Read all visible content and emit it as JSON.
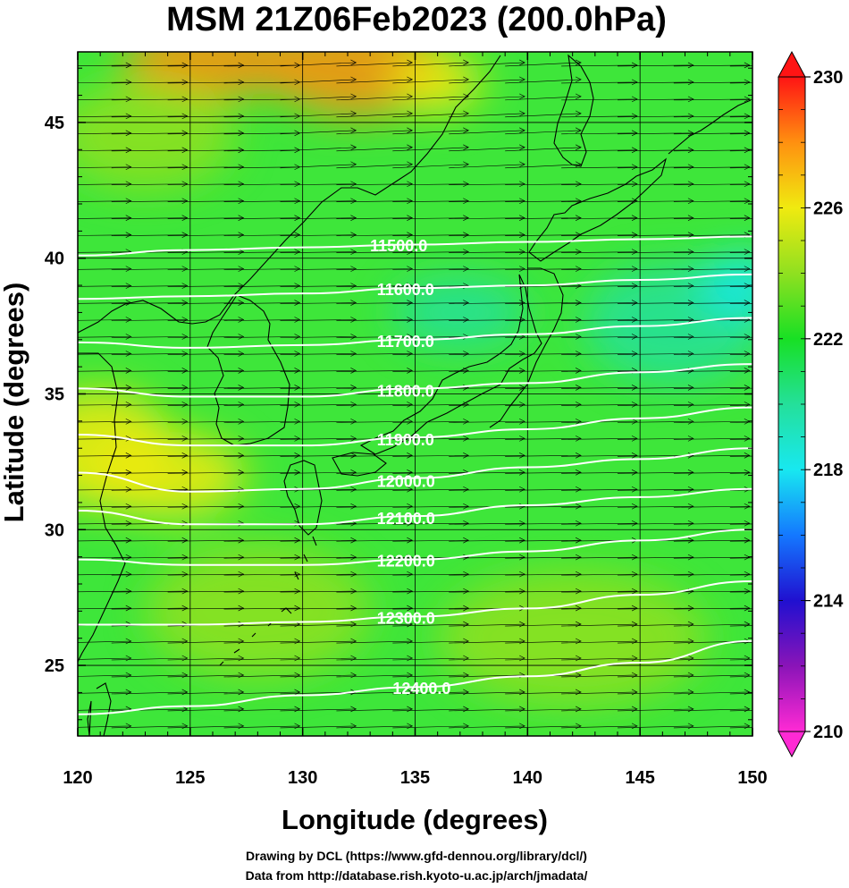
{
  "title": "MSM 21Z06Feb2023 (200.0hPa)",
  "xlabel": "Longitude (degrees)",
  "ylabel": "Latitude  (degrees)",
  "credits": [
    "Drawing by DCL (https://www.gfd-dennou.org/library/dcl/)",
    "Data from http://database.rish.kyoto-u.ac.jp/arch/jmadata/"
  ],
  "colors": {
    "background_field": "#3ee63a",
    "contour": "#ffffff",
    "wind_vector": "#000000",
    "coastline": "#000000",
    "grid": "#000000"
  },
  "chart_data": {
    "type": "heatmap",
    "field": "temperature shading with geopotential height contours and wind vectors",
    "xlim": [
      120,
      150
    ],
    "ylim": [
      22.4,
      47.6
    ],
    "xticks": [
      {
        "value": 120,
        "label": "120"
      },
      {
        "value": 125,
        "label": "125"
      },
      {
        "value": 130,
        "label": "130"
      },
      {
        "value": 135,
        "label": "135"
      },
      {
        "value": 140,
        "label": "140"
      },
      {
        "value": 145,
        "label": "145"
      },
      {
        "value": 150,
        "label": "150"
      }
    ],
    "yticks": [
      {
        "value": 25,
        "label": "25"
      },
      {
        "value": 30,
        "label": "30"
      },
      {
        "value": 35,
        "label": "35"
      },
      {
        "value": 40,
        "label": "40"
      },
      {
        "value": 45,
        "label": "45"
      }
    ],
    "colorbar": {
      "min": 210,
      "max": 230,
      "labels": [
        {
          "value": 230,
          "label": "230"
        },
        {
          "value": 226,
          "label": "226"
        },
        {
          "value": 222,
          "label": "222"
        },
        {
          "value": 218,
          "label": "218"
        },
        {
          "value": 214,
          "label": "214"
        },
        {
          "value": 210,
          "label": "210"
        }
      ],
      "stops": [
        {
          "value": 210,
          "color": "#ff2ad4"
        },
        {
          "value": 212,
          "color": "#8a14b8"
        },
        {
          "value": 214,
          "color": "#2010d0"
        },
        {
          "value": 216,
          "color": "#1478ff"
        },
        {
          "value": 218,
          "color": "#18e8f0"
        },
        {
          "value": 220,
          "color": "#24e09a"
        },
        {
          "value": 222,
          "color": "#18e024"
        },
        {
          "value": 224,
          "color": "#90e020"
        },
        {
          "value": 226,
          "color": "#f0ea10"
        },
        {
          "value": 228,
          "color": "#ff9010"
        },
        {
          "value": 230,
          "color": "#ff1414"
        }
      ]
    },
    "contours": [
      {
        "level": "11500.0",
        "label_lon": 133.0,
        "points": [
          [
            120,
            40.1
          ],
          [
            125,
            40.3
          ],
          [
            130,
            40.4
          ],
          [
            135,
            40.5
          ],
          [
            140,
            40.6
          ],
          [
            145,
            40.7
          ],
          [
            150,
            40.8
          ]
        ]
      },
      {
        "level": "11600.0",
        "label_lon": 133.3,
        "points": [
          [
            120,
            38.5
          ],
          [
            125,
            38.6
          ],
          [
            130,
            38.7
          ],
          [
            135,
            38.9
          ],
          [
            140,
            39.0
          ],
          [
            145,
            39.2
          ],
          [
            150,
            39.4
          ]
        ]
      },
      {
        "level": "11700.0",
        "label_lon": 133.3,
        "points": [
          [
            120,
            36.9
          ],
          [
            125,
            36.7
          ],
          [
            130,
            36.8
          ],
          [
            135,
            37.0
          ],
          [
            140,
            37.2
          ],
          [
            145,
            37.5
          ],
          [
            150,
            37.8
          ]
        ]
      },
      {
        "level": "11800.0",
        "label_lon": 133.3,
        "points": [
          [
            120,
            35.2
          ],
          [
            125,
            34.9
          ],
          [
            130,
            34.9
          ],
          [
            135,
            35.2
          ],
          [
            140,
            35.4
          ],
          [
            145,
            35.8
          ],
          [
            150,
            36.1
          ]
        ]
      },
      {
        "level": "11900.0",
        "label_lon": 133.3,
        "points": [
          [
            120,
            33.5
          ],
          [
            125,
            33.1
          ],
          [
            130,
            33.1
          ],
          [
            135,
            33.4
          ],
          [
            140,
            33.7
          ],
          [
            145,
            34.1
          ],
          [
            150,
            34.5
          ]
        ]
      },
      {
        "level": "12000.0",
        "label_lon": 133.3,
        "points": [
          [
            120,
            32.1
          ],
          [
            125,
            31.4
          ],
          [
            130,
            31.5
          ],
          [
            135,
            31.9
          ],
          [
            140,
            32.3
          ],
          [
            145,
            32.6
          ],
          [
            150,
            33.0
          ]
        ]
      },
      {
        "level": "12100.0",
        "label_lon": 133.3,
        "points": [
          [
            120,
            30.7
          ],
          [
            125,
            30.2
          ],
          [
            130,
            30.2
          ],
          [
            135,
            30.5
          ],
          [
            140,
            30.9
          ],
          [
            145,
            31.2
          ],
          [
            150,
            31.5
          ]
        ]
      },
      {
        "level": "12200.0",
        "label_lon": 133.3,
        "points": [
          [
            120,
            28.9
          ],
          [
            125,
            28.7
          ],
          [
            130,
            28.7
          ],
          [
            135,
            28.9
          ],
          [
            140,
            29.2
          ],
          [
            145,
            29.6
          ],
          [
            150,
            30.0
          ]
        ]
      },
      {
        "level": "12300.0",
        "label_lon": 133.3,
        "points": [
          [
            120,
            26.5
          ],
          [
            125,
            26.5
          ],
          [
            130,
            26.6
          ],
          [
            135,
            26.8
          ],
          [
            140,
            27.1
          ],
          [
            145,
            27.6
          ],
          [
            150,
            28.1
          ]
        ]
      },
      {
        "level": "12400.0",
        "label_lon": 134.0,
        "points": [
          [
            120,
            23.2
          ],
          [
            125,
            23.5
          ],
          [
            130,
            23.9
          ],
          [
            135,
            24.2
          ],
          [
            140,
            24.6
          ],
          [
            145,
            25.1
          ],
          [
            150,
            25.9
          ]
        ]
      }
    ],
    "temperature_blobs": [
      {
        "lon": 126.0,
        "lat": 47.3,
        "rx": 4.0,
        "ry": 1.4,
        "value": 227.5
      },
      {
        "lon": 132.5,
        "lat": 47.0,
        "rx": 4.0,
        "ry": 1.8,
        "value": 228.0
      },
      {
        "lon": 136.0,
        "lat": 46.5,
        "rx": 2.0,
        "ry": 1.2,
        "value": 227.0
      },
      {
        "lon": 121.0,
        "lat": 33.0,
        "rx": 3.2,
        "ry": 2.2,
        "value": 227.0
      },
      {
        "lon": 124.0,
        "lat": 32.0,
        "rx": 3.5,
        "ry": 1.6,
        "value": 225.5
      },
      {
        "lon": 123.0,
        "lat": 44.5,
        "rx": 4.0,
        "ry": 2.0,
        "value": 224.5
      },
      {
        "lon": 137.0,
        "lat": 38.0,
        "rx": 3.0,
        "ry": 1.3,
        "value": 220.0
      },
      {
        "lon": 146.5,
        "lat": 37.6,
        "rx": 4.0,
        "ry": 2.2,
        "value": 219.5
      },
      {
        "lon": 149.5,
        "lat": 39.0,
        "rx": 1.8,
        "ry": 1.2,
        "value": 219.0
      },
      {
        "lon": 142.0,
        "lat": 26.0,
        "rx": 6.0,
        "ry": 2.5,
        "value": 224.0
      },
      {
        "lon": 128.0,
        "lat": 27.0,
        "rx": 5.0,
        "ry": 2.5,
        "value": 223.5
      }
    ],
    "wind": {
      "direction": "westerly",
      "lon_spacing": 2.5,
      "lat_spacing": 0.625
    }
  }
}
